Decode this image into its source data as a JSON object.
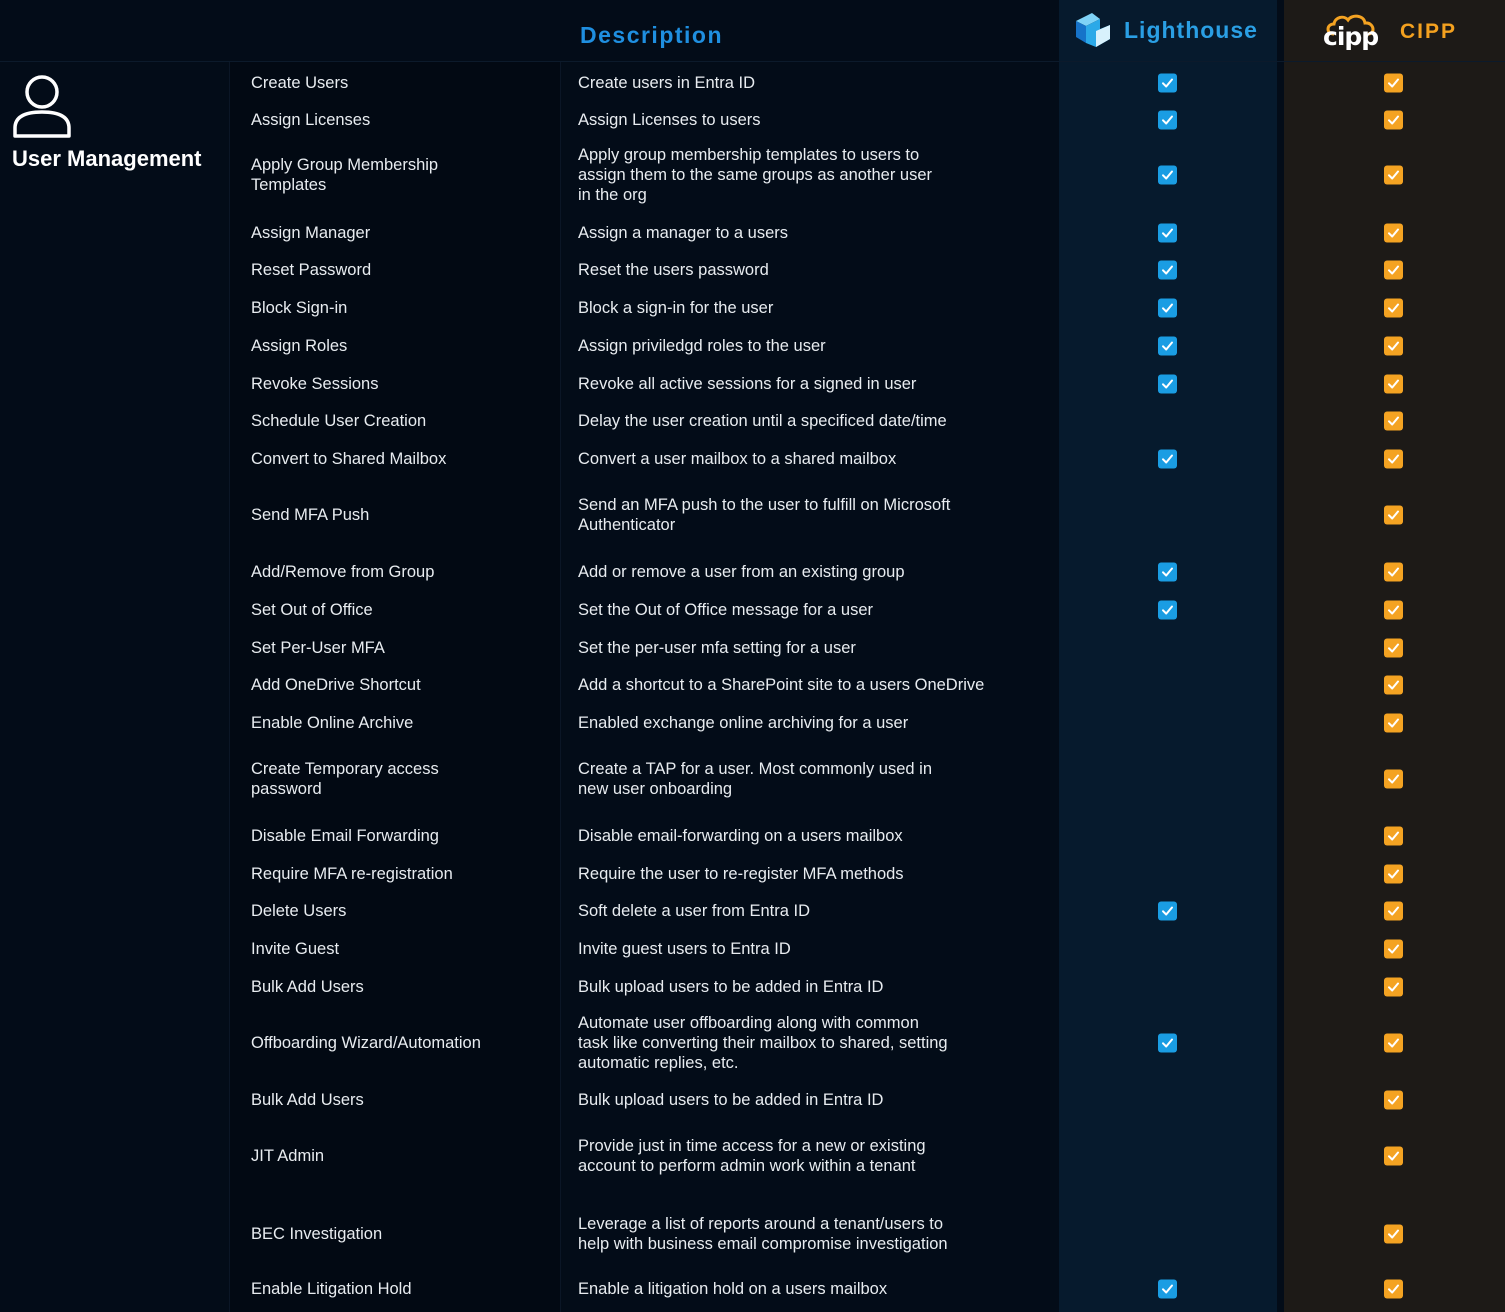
{
  "header": {
    "description_label": "Description",
    "lighthouse_label": "Lighthouse",
    "cipp_label": "CIPP",
    "cipp_logo_text": "cipp"
  },
  "section": {
    "title": "User Management",
    "icon": "user-icon"
  },
  "colors": {
    "lighthouse_accent": "#1a9de3",
    "cipp_accent": "#f4a322",
    "background": "#030c18"
  },
  "rows": [
    {
      "feature": "Create Users",
      "description": "Create users in Entra ID",
      "lighthouse": true,
      "cipp": true
    },
    {
      "feature": "Assign Licenses",
      "description": "Assign Licenses to users",
      "lighthouse": true,
      "cipp": true
    },
    {
      "feature": "Apply Group Membership Templates",
      "description": "Apply group membership templates to users to assign them to the same groups as another user in the org",
      "lighthouse": true,
      "cipp": true
    },
    {
      "feature": "Assign Manager",
      "description": "Assign a manager to a users",
      "lighthouse": true,
      "cipp": true
    },
    {
      "feature": "Reset Password",
      "description": "Reset the users password",
      "lighthouse": true,
      "cipp": true
    },
    {
      "feature": "Block Sign-in",
      "description": "Block a sign-in for the user",
      "lighthouse": true,
      "cipp": true
    },
    {
      "feature": "Assign Roles",
      "description": "Assign priviledgd roles to the user",
      "lighthouse": true,
      "cipp": true
    },
    {
      "feature": "Revoke Sessions",
      "description": "Revoke all active sessions for a signed in user",
      "lighthouse": true,
      "cipp": true
    },
    {
      "feature": "Schedule User Creation",
      "description": "Delay the user creation until a specificed date/time",
      "lighthouse": false,
      "cipp": true
    },
    {
      "feature": "Convert to Shared Mailbox",
      "description": "Convert a user mailbox to a shared mailbox",
      "lighthouse": true,
      "cipp": true
    },
    {
      "feature": "Send MFA Push",
      "description": "Send an MFA push to the user to fulfill on Microsoft Authenticator",
      "lighthouse": false,
      "cipp": true
    },
    {
      "feature": "Add/Remove from Group",
      "description": "Add or remove a user from an existing group",
      "lighthouse": true,
      "cipp": true
    },
    {
      "feature": "Set Out of Office",
      "description": "Set the Out of Office message for a user",
      "lighthouse": true,
      "cipp": true
    },
    {
      "feature": "Set Per-User MFA",
      "description": "Set the per-user mfa setting for a user",
      "lighthouse": false,
      "cipp": true
    },
    {
      "feature": "Add OneDrive Shortcut",
      "description": "Add a shortcut to a SharePoint site to a users OneDrive",
      "lighthouse": false,
      "cipp": true
    },
    {
      "feature": "Enable Online Archive",
      "description": "Enabled exchange online archiving for a user",
      "lighthouse": false,
      "cipp": true
    },
    {
      "feature": "Create Temporary access password",
      "description": "Create a TAP for a user. Most commonly used in new user onboarding",
      "lighthouse": false,
      "cipp": true
    },
    {
      "feature": "Disable Email Forwarding",
      "description": "Disable email-forwarding on a users mailbox",
      "lighthouse": false,
      "cipp": true
    },
    {
      "feature": "Require MFA re-registration",
      "description": "Require the user to re-register MFA methods",
      "lighthouse": false,
      "cipp": true
    },
    {
      "feature": "Delete Users",
      "description": "Soft delete a user from Entra ID",
      "lighthouse": true,
      "cipp": true
    },
    {
      "feature": "Invite Guest",
      "description": "Invite guest users to Entra ID",
      "lighthouse": false,
      "cipp": true
    },
    {
      "feature": "Bulk Add Users",
      "description": "Bulk upload users to be added in Entra ID",
      "lighthouse": false,
      "cipp": true
    },
    {
      "feature": "Offboarding Wizard/Automation",
      "description": "Automate user offboarding along with common task like converting their mailbox to shared, setting automatic replies, etc.",
      "lighthouse": true,
      "cipp": true
    },
    {
      "feature": "Bulk Add Users",
      "description": "Bulk upload users to be added in Entra ID",
      "lighthouse": false,
      "cipp": true
    },
    {
      "feature": "JIT Admin",
      "description": "Provide just in time access for a new or existing account to perform admin work within a tenant",
      "lighthouse": false,
      "cipp": true
    },
    {
      "feature": "BEC Investigation",
      "description": "Leverage a list of reports around a tenant/users to help with business email compromise investigation",
      "lighthouse": false,
      "cipp": true
    },
    {
      "feature": "Enable Litigation Hold",
      "description": "Enable a litigation hold on a users mailbox",
      "lighthouse": true,
      "cipp": true
    }
  ]
}
